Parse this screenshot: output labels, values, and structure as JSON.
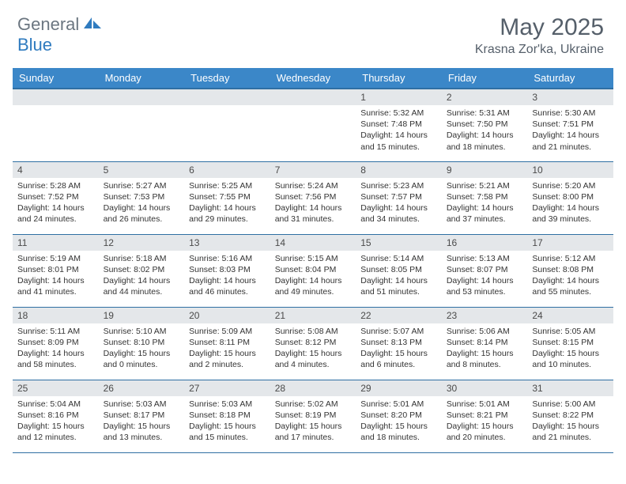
{
  "logo": {
    "text1": "General",
    "text2": "Blue"
  },
  "title": "May 2025",
  "location": "Krasna Zor'ka, Ukraine",
  "colors": {
    "header_bg": "#3b87c8",
    "header_border": "#2f6fa3",
    "daynum_bg": "#e4e7ea",
    "text": "#333333",
    "logo_gray": "#6b7680",
    "logo_blue": "#2f7bbf",
    "title_color": "#555f6a"
  },
  "weekdays": [
    "Sunday",
    "Monday",
    "Tuesday",
    "Wednesday",
    "Thursday",
    "Friday",
    "Saturday"
  ],
  "blanks_before": 4,
  "days": [
    {
      "n": 1,
      "sr": "5:32 AM",
      "ss": "7:48 PM",
      "dh": 14,
      "dm": 15
    },
    {
      "n": 2,
      "sr": "5:31 AM",
      "ss": "7:50 PM",
      "dh": 14,
      "dm": 18
    },
    {
      "n": 3,
      "sr": "5:30 AM",
      "ss": "7:51 PM",
      "dh": 14,
      "dm": 21
    },
    {
      "n": 4,
      "sr": "5:28 AM",
      "ss": "7:52 PM",
      "dh": 14,
      "dm": 24
    },
    {
      "n": 5,
      "sr": "5:27 AM",
      "ss": "7:53 PM",
      "dh": 14,
      "dm": 26
    },
    {
      "n": 6,
      "sr": "5:25 AM",
      "ss": "7:55 PM",
      "dh": 14,
      "dm": 29
    },
    {
      "n": 7,
      "sr": "5:24 AM",
      "ss": "7:56 PM",
      "dh": 14,
      "dm": 31
    },
    {
      "n": 8,
      "sr": "5:23 AM",
      "ss": "7:57 PM",
      "dh": 14,
      "dm": 34
    },
    {
      "n": 9,
      "sr": "5:21 AM",
      "ss": "7:58 PM",
      "dh": 14,
      "dm": 37
    },
    {
      "n": 10,
      "sr": "5:20 AM",
      "ss": "8:00 PM",
      "dh": 14,
      "dm": 39
    },
    {
      "n": 11,
      "sr": "5:19 AM",
      "ss": "8:01 PM",
      "dh": 14,
      "dm": 41
    },
    {
      "n": 12,
      "sr": "5:18 AM",
      "ss": "8:02 PM",
      "dh": 14,
      "dm": 44
    },
    {
      "n": 13,
      "sr": "5:16 AM",
      "ss": "8:03 PM",
      "dh": 14,
      "dm": 46
    },
    {
      "n": 14,
      "sr": "5:15 AM",
      "ss": "8:04 PM",
      "dh": 14,
      "dm": 49
    },
    {
      "n": 15,
      "sr": "5:14 AM",
      "ss": "8:05 PM",
      "dh": 14,
      "dm": 51
    },
    {
      "n": 16,
      "sr": "5:13 AM",
      "ss": "8:07 PM",
      "dh": 14,
      "dm": 53
    },
    {
      "n": 17,
      "sr": "5:12 AM",
      "ss": "8:08 PM",
      "dh": 14,
      "dm": 55
    },
    {
      "n": 18,
      "sr": "5:11 AM",
      "ss": "8:09 PM",
      "dh": 14,
      "dm": 58
    },
    {
      "n": 19,
      "sr": "5:10 AM",
      "ss": "8:10 PM",
      "dh": 15,
      "dm": 0
    },
    {
      "n": 20,
      "sr": "5:09 AM",
      "ss": "8:11 PM",
      "dh": 15,
      "dm": 2
    },
    {
      "n": 21,
      "sr": "5:08 AM",
      "ss": "8:12 PM",
      "dh": 15,
      "dm": 4
    },
    {
      "n": 22,
      "sr": "5:07 AM",
      "ss": "8:13 PM",
      "dh": 15,
      "dm": 6
    },
    {
      "n": 23,
      "sr": "5:06 AM",
      "ss": "8:14 PM",
      "dh": 15,
      "dm": 8
    },
    {
      "n": 24,
      "sr": "5:05 AM",
      "ss": "8:15 PM",
      "dh": 15,
      "dm": 10
    },
    {
      "n": 25,
      "sr": "5:04 AM",
      "ss": "8:16 PM",
      "dh": 15,
      "dm": 12
    },
    {
      "n": 26,
      "sr": "5:03 AM",
      "ss": "8:17 PM",
      "dh": 15,
      "dm": 13
    },
    {
      "n": 27,
      "sr": "5:03 AM",
      "ss": "8:18 PM",
      "dh": 15,
      "dm": 15
    },
    {
      "n": 28,
      "sr": "5:02 AM",
      "ss": "8:19 PM",
      "dh": 15,
      "dm": 17
    },
    {
      "n": 29,
      "sr": "5:01 AM",
      "ss": "8:20 PM",
      "dh": 15,
      "dm": 18
    },
    {
      "n": 30,
      "sr": "5:01 AM",
      "ss": "8:21 PM",
      "dh": 15,
      "dm": 20
    },
    {
      "n": 31,
      "sr": "5:00 AM",
      "ss": "8:22 PM",
      "dh": 15,
      "dm": 21
    }
  ],
  "labels": {
    "sunrise": "Sunrise:",
    "sunset": "Sunset:",
    "daylight": "Daylight:",
    "hours": "hours",
    "and": "and",
    "minutes": "minutes."
  }
}
